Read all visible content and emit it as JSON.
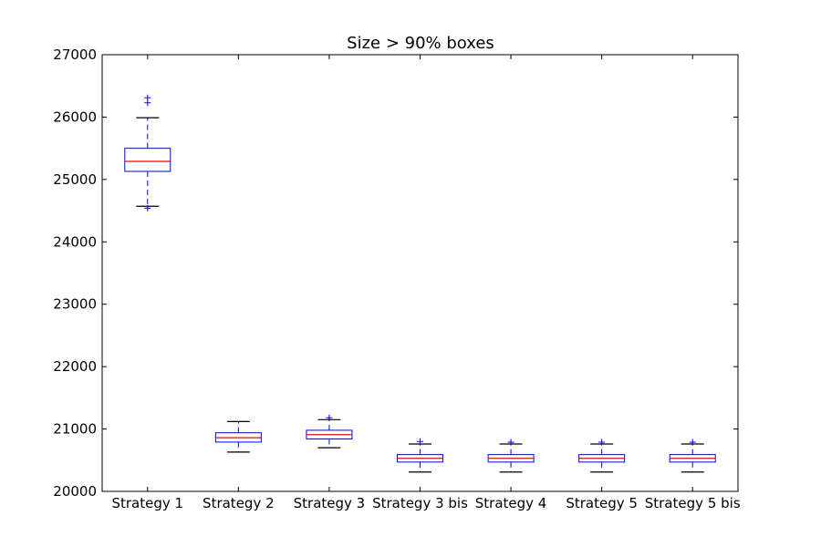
{
  "chart_data": {
    "type": "box",
    "title": "Size > 90% boxes",
    "xlabel": "",
    "ylabel": "",
    "ylim": [
      20000,
      27000
    ],
    "yticks": [
      20000,
      21000,
      22000,
      23000,
      24000,
      25000,
      26000,
      27000
    ],
    "categories": [
      "Strategy 1",
      "Strategy 2",
      "Strategy 3",
      "Strategy 3 bis",
      "Strategy 4",
      "Strategy 5",
      "Strategy 5 bis"
    ],
    "boxes": [
      {
        "whisker_low": 24570,
        "q1": 25130,
        "median": 25290,
        "q3": 25500,
        "whisker_high": 25990,
        "outliers": [
          24540,
          26230,
          26310
        ]
      },
      {
        "whisker_low": 20630,
        "q1": 20790,
        "median": 20860,
        "q3": 20940,
        "whisker_high": 21120,
        "outliers": []
      },
      {
        "whisker_low": 20700,
        "q1": 20840,
        "median": 20910,
        "q3": 20980,
        "whisker_high": 21150,
        "outliers": [
          21180
        ]
      },
      {
        "whisker_low": 20310,
        "q1": 20470,
        "median": 20530,
        "q3": 20590,
        "whisker_high": 20760,
        "outliers": [
          20800
        ]
      },
      {
        "whisker_low": 20310,
        "q1": 20470,
        "median": 20530,
        "q3": 20590,
        "whisker_high": 20760,
        "outliers": [
          20790
        ]
      },
      {
        "whisker_low": 20310,
        "q1": 20470,
        "median": 20530,
        "q3": 20590,
        "whisker_high": 20760,
        "outliers": [
          20790
        ]
      },
      {
        "whisker_low": 20310,
        "q1": 20470,
        "median": 20530,
        "q3": 20590,
        "whisker_high": 20760,
        "outliers": [
          20790
        ]
      }
    ],
    "grid": false,
    "colors": {
      "box": "#0000ff",
      "median": "#ff0000",
      "whisker_cap": "#000000",
      "outlier": "#0000ff",
      "axes": "#000000"
    }
  }
}
